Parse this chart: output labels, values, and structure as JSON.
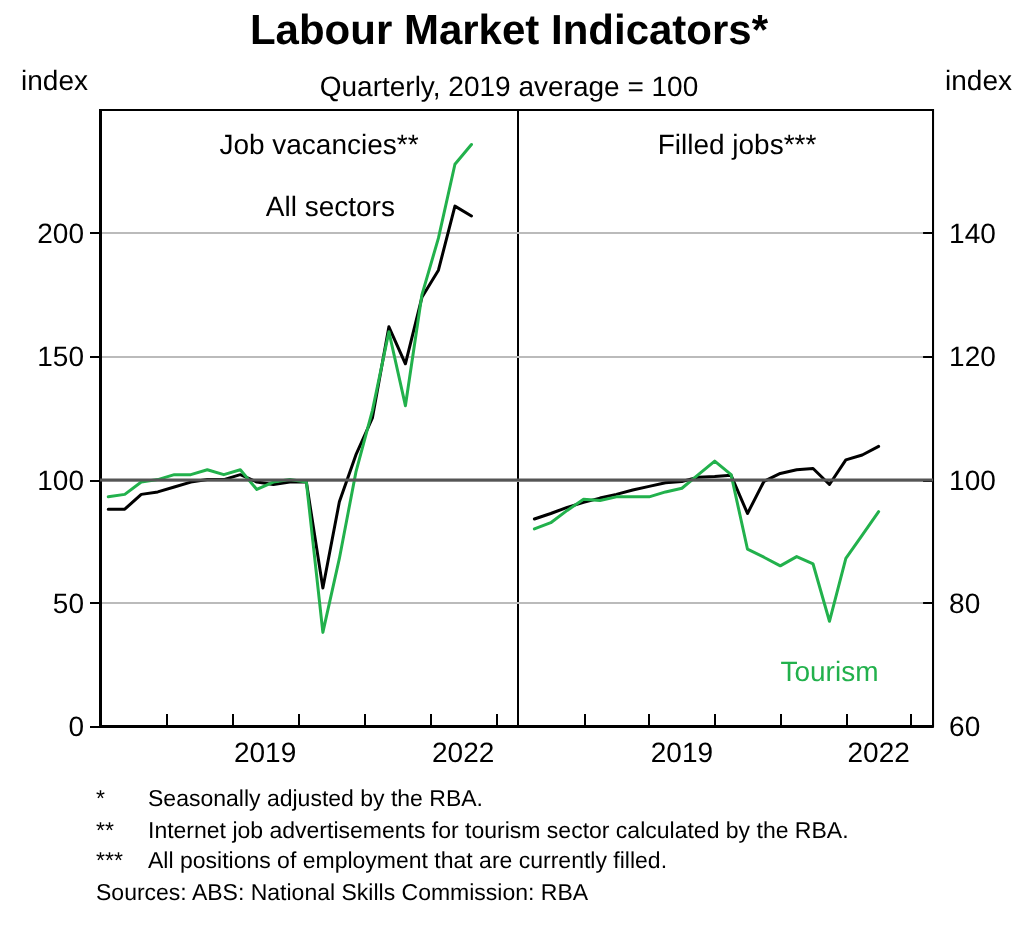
{
  "chart_data": [
    {
      "type": "other",
      "title": "Labour Market Indicators*",
      "subtitle": "Quarterly, 2019 average = 100",
      "annotations": [
        "* Seasonally adjusted by the RBA.",
        "** Internet job advertisements for tourism sector calculated by the RBA.",
        "*** All positions of employment that are currently filled.",
        "Sources: ABS: National Skills Commission: RBA"
      ]
    },
    {
      "type": "line",
      "title": "Job vacancies**",
      "ylabel": "index",
      "xlim": [
        2017,
        2023.33
      ],
      "ylim": [
        0,
        250
      ],
      "yticks": [
        0,
        50,
        100,
        150,
        200
      ],
      "xticks": [
        {
          "value": 2018,
          "label": null
        },
        {
          "value": 2019,
          "label": null
        },
        {
          "value": 2019.5,
          "label": "2019"
        },
        {
          "value": 2020,
          "label": null
        },
        {
          "value": 2021,
          "label": null
        },
        {
          "value": 2022,
          "label": null
        },
        {
          "value": 2022.5,
          "label": "2022"
        },
        {
          "value": 2023,
          "label": null
        }
      ],
      "grid": "y",
      "ref_lines": [
        {
          "axis": "y",
          "value": 100,
          "color": "#555555"
        }
      ],
      "series": [
        {
          "name": "All sectors",
          "color": "#000000",
          "x": [
            2017.125,
            2017.375,
            2017.625,
            2017.875,
            2018.125,
            2018.375,
            2018.625,
            2018.875,
            2019.125,
            2019.375,
            2019.625,
            2019.875,
            2020.125,
            2020.375,
            2020.625,
            2020.875,
            2021.125,
            2021.375,
            2021.625,
            2021.875,
            2022.125,
            2022.375,
            2022.625
          ],
          "values": [
            88,
            88,
            94,
            95,
            97,
            99,
            100,
            100,
            102,
            99,
            98,
            99,
            99,
            56,
            91,
            110,
            125,
            162,
            147,
            174,
            185,
            211,
            207
          ]
        },
        {
          "color": "#22b14c",
          "x": [
            2017.125,
            2017.375,
            2017.625,
            2017.875,
            2018.125,
            2018.375,
            2018.625,
            2018.875,
            2019.125,
            2019.375,
            2019.625,
            2019.875,
            2020.125,
            2020.375,
            2020.625,
            2020.875,
            2021.125,
            2021.375,
            2021.625,
            2021.875,
            2022.125,
            2022.375,
            2022.625
          ],
          "values": [
            93,
            94,
            99,
            100,
            102,
            102,
            104,
            102,
            104,
            96,
            99,
            100,
            99,
            38,
            68,
            103,
            128,
            160,
            130,
            175,
            198,
            228,
            236
          ]
        }
      ]
    },
    {
      "type": "line",
      "title": "Filled jobs***",
      "ylabel": "index",
      "xlim": [
        2017,
        2023.33
      ],
      "ylim": [
        60,
        160
      ],
      "yticks": [
        60,
        80,
        100,
        120,
        140
      ],
      "xticks": [
        {
          "value": 2018,
          "label": null
        },
        {
          "value": 2019,
          "label": null
        },
        {
          "value": 2019.5,
          "label": "2019"
        },
        {
          "value": 2020,
          "label": null
        },
        {
          "value": 2021,
          "label": null
        },
        {
          "value": 2022,
          "label": null
        },
        {
          "value": 2022.5,
          "label": "2022"
        },
        {
          "value": 2023,
          "label": null
        }
      ],
      "grid": "y",
      "ref_lines": [
        {
          "axis": "y",
          "value": 100,
          "color": "#555555"
        }
      ],
      "series": [
        {
          "color": "#000000",
          "x": [
            2017.25,
            2017.5,
            2017.75,
            2018,
            2018.25,
            2018.5,
            2018.75,
            2019,
            2019.25,
            2019.5,
            2019.75,
            2020,
            2020.25,
            2020.5,
            2020.75,
            2021,
            2021.25,
            2021.5,
            2021.75,
            2022,
            2022.25,
            2022.5
          ],
          "values": [
            93.6,
            94.5,
            95.5,
            96.3,
            97,
            97.6,
            98.3,
            98.9,
            99.5,
            99.7,
            100.4,
            100.5,
            100.7,
            94.5,
            99.7,
            101,
            101.6,
            101.8,
            99.2,
            103.2,
            104,
            105.4
          ]
        },
        {
          "name": "Tourism",
          "color": "#22b14c",
          "x": [
            2017.25,
            2017.5,
            2017.75,
            2018,
            2018.25,
            2018.5,
            2018.75,
            2019,
            2019.25,
            2019.5,
            2019.75,
            2020,
            2020.25,
            2020.5,
            2020.75,
            2021,
            2021.25,
            2021.5,
            2021.75,
            2022,
            2022.25,
            2022.5
          ],
          "values": [
            92,
            93,
            95,
            96.8,
            96.6,
            97.2,
            97.2,
            97.2,
            98,
            98.6,
            100.8,
            103,
            100.8,
            88.7,
            87.4,
            86,
            87.5,
            86.3,
            77,
            87.2,
            91,
            94.8
          ]
        }
      ]
    }
  ]
}
